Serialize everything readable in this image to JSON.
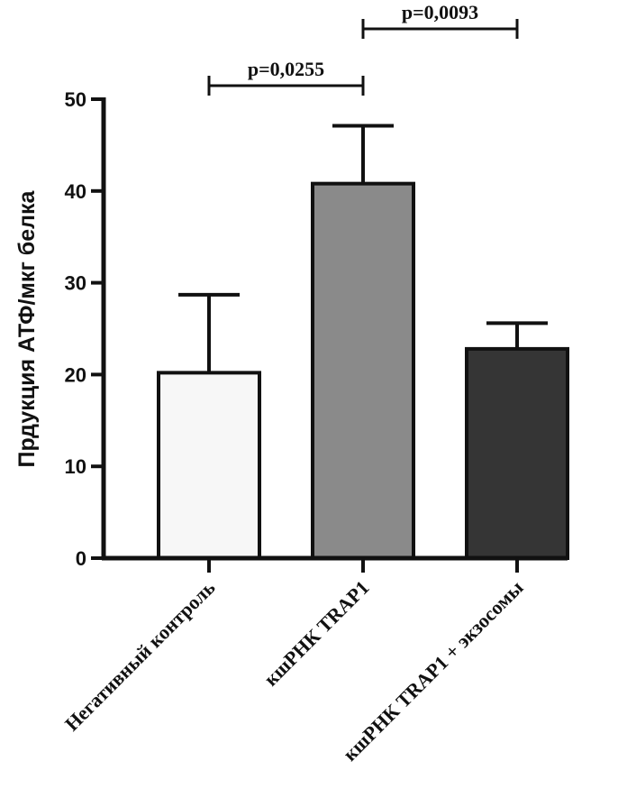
{
  "chart_data": {
    "type": "bar",
    "title": "",
    "xlabel": "",
    "ylabel": "Прдукция АТФ/мкг белка",
    "ylim": [
      0,
      50
    ],
    "yticks": [
      0,
      10,
      20,
      30,
      40,
      50
    ],
    "grid": false,
    "categories": [
      "Негативный контроль",
      "кшРНК TRAP1",
      "кшРНК TRAP1 + экзосомы"
    ],
    "values": [
      20.2,
      40.8,
      22.8
    ],
    "errors": [
      8.5,
      6.3,
      2.8
    ],
    "bar_colors": [
      "#f7f7f7",
      "#8a8a8a",
      "#353535"
    ],
    "annotations": [
      {
        "from": 0,
        "to": 1,
        "text": "p=0,0255"
      },
      {
        "from": 1,
        "to": 2,
        "text": "p=0,0093"
      }
    ]
  }
}
